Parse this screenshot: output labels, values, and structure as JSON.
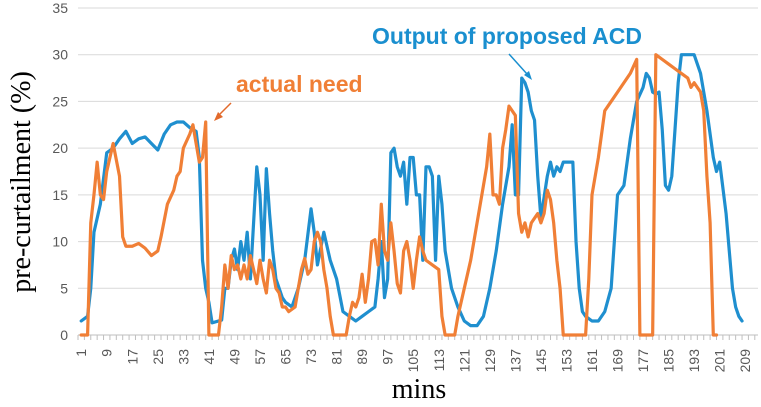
{
  "chart_data": {
    "type": "line",
    "title": "",
    "xlabel": "mins",
    "ylabel": "pre-curtailment (%)",
    "ylim": [
      0,
      35
    ],
    "yticks": [
      0,
      5,
      10,
      15,
      20,
      25,
      30,
      35
    ],
    "xlim": [
      0,
      213
    ],
    "xticks": [
      1,
      9,
      17,
      25,
      33,
      41,
      49,
      57,
      65,
      73,
      81,
      89,
      97,
      105,
      113,
      121,
      129,
      137,
      145,
      153,
      161,
      169,
      177,
      185,
      193,
      201,
      209
    ],
    "grid": true,
    "series": [
      {
        "name": "Output of proposed ACD",
        "color": "#1f8fcf",
        "points": [
          [
            1,
            1.5
          ],
          [
            3,
            2
          ],
          [
            4,
            5
          ],
          [
            5,
            11
          ],
          [
            7,
            14
          ],
          [
            9,
            19.5
          ],
          [
            11,
            20
          ],
          [
            13,
            21
          ],
          [
            15,
            21.8
          ],
          [
            17,
            20.5
          ],
          [
            19,
            21
          ],
          [
            21,
            21.2
          ],
          [
            23,
            20.5
          ],
          [
            25,
            19.8
          ],
          [
            27,
            21.5
          ],
          [
            29,
            22.5
          ],
          [
            31,
            22.8
          ],
          [
            33,
            22.8
          ],
          [
            35,
            22.2
          ],
          [
            37,
            21.8
          ],
          [
            38,
            19
          ],
          [
            39,
            8
          ],
          [
            40,
            5
          ],
          [
            41,
            3.5
          ],
          [
            42,
            1.3
          ],
          [
            45,
            1.6
          ],
          [
            46,
            5
          ],
          [
            47,
            5
          ],
          [
            48,
            8
          ],
          [
            49,
            9.2
          ],
          [
            50,
            7
          ],
          [
            51,
            10
          ],
          [
            52,
            8
          ],
          [
            53,
            11
          ],
          [
            54,
            6
          ],
          [
            55,
            12
          ],
          [
            56,
            18
          ],
          [
            57,
            15
          ],
          [
            58,
            8
          ],
          [
            59,
            17.8
          ],
          [
            60,
            13
          ],
          [
            61,
            9
          ],
          [
            62,
            6
          ],
          [
            63,
            5
          ],
          [
            64,
            4
          ],
          [
            65,
            3.5
          ],
          [
            67,
            3
          ],
          [
            69,
            5
          ],
          [
            71,
            8
          ],
          [
            73,
            13.5
          ],
          [
            74,
            11
          ],
          [
            75,
            7.5
          ],
          [
            77,
            11
          ],
          [
            79,
            8
          ],
          [
            81,
            6
          ],
          [
            83,
            2.5
          ],
          [
            85,
            2
          ],
          [
            87,
            1.5
          ],
          [
            89,
            2
          ],
          [
            91,
            2.5
          ],
          [
            93,
            3
          ],
          [
            94,
            6
          ],
          [
            95,
            10
          ],
          [
            96,
            4
          ],
          [
            97,
            6
          ],
          [
            98,
            19.5
          ],
          [
            99,
            20
          ],
          [
            100,
            18
          ],
          [
            101,
            17
          ],
          [
            102,
            18.5
          ],
          [
            103,
            14
          ],
          [
            104,
            19
          ],
          [
            105,
            19
          ],
          [
            106,
            15
          ],
          [
            107,
            15
          ],
          [
            108,
            8
          ],
          [
            109,
            18
          ],
          [
            110,
            18
          ],
          [
            111,
            17
          ],
          [
            112,
            8
          ],
          [
            113,
            17
          ],
          [
            114,
            14
          ],
          [
            115,
            9
          ],
          [
            117,
            5
          ],
          [
            119,
            3
          ],
          [
            121,
            1.5
          ],
          [
            123,
            1
          ],
          [
            125,
            1
          ],
          [
            127,
            2
          ],
          [
            129,
            5
          ],
          [
            131,
            9
          ],
          [
            133,
            14
          ],
          [
            135,
            18
          ],
          [
            136,
            22.5
          ],
          [
            137,
            15
          ],
          [
            138,
            15
          ],
          [
            139,
            27.5
          ],
          [
            140,
            27
          ],
          [
            141,
            26
          ],
          [
            142,
            24
          ],
          [
            143,
            23
          ],
          [
            144,
            17
          ],
          [
            145,
            12.5
          ],
          [
            147,
            17
          ],
          [
            148,
            18.5
          ],
          [
            149,
            17
          ],
          [
            150,
            18
          ],
          [
            151,
            17.5
          ],
          [
            152,
            18.5
          ],
          [
            155,
            18.5
          ],
          [
            156,
            10
          ],
          [
            157,
            5
          ],
          [
            158,
            2.5
          ],
          [
            159,
            2
          ],
          [
            161,
            1.5
          ],
          [
            163,
            1.5
          ],
          [
            165,
            2.5
          ],
          [
            167,
            5
          ],
          [
            168,
            10
          ],
          [
            169,
            15
          ],
          [
            171,
            16
          ],
          [
            173,
            21
          ],
          [
            175,
            25
          ],
          [
            177,
            26.5
          ],
          [
            178,
            28
          ],
          [
            179,
            27.5
          ],
          [
            180,
            26
          ],
          [
            181,
            25.8
          ],
          [
            182,
            26
          ],
          [
            183,
            22
          ],
          [
            184,
            16
          ],
          [
            185,
            15.5
          ],
          [
            186,
            17
          ],
          [
            187,
            22
          ],
          [
            188,
            27
          ],
          [
            189,
            30
          ],
          [
            191,
            30
          ],
          [
            193,
            30
          ],
          [
            195,
            28
          ],
          [
            197,
            24
          ],
          [
            199,
            19
          ],
          [
            200,
            17.5
          ],
          [
            201,
            18.5
          ],
          [
            203,
            13
          ],
          [
            205,
            5
          ],
          [
            206,
            3
          ],
          [
            207,
            2
          ],
          [
            208,
            1.5
          ]
        ]
      },
      {
        "name": "actual need",
        "color": "#f07f36",
        "points": [
          [
            1,
            0
          ],
          [
            3,
            0
          ],
          [
            4,
            12
          ],
          [
            5,
            15
          ],
          [
            6,
            18.5
          ],
          [
            7,
            15
          ],
          [
            8,
            14.5
          ],
          [
            9,
            17.5
          ],
          [
            11,
            20.5
          ],
          [
            13,
            17
          ],
          [
            14,
            10.5
          ],
          [
            15,
            9.5
          ],
          [
            17,
            9.5
          ],
          [
            19,
            9.8
          ],
          [
            21,
            9.3
          ],
          [
            23,
            8.5
          ],
          [
            25,
            9
          ],
          [
            26,
            10.5
          ],
          [
            28,
            14
          ],
          [
            30,
            15.5
          ],
          [
            31,
            17
          ],
          [
            32,
            17.5
          ],
          [
            33,
            20
          ],
          [
            35,
            21.5
          ],
          [
            36,
            22.5
          ],
          [
            37,
            20.5
          ],
          [
            38,
            18.5
          ],
          [
            39,
            19
          ],
          [
            40,
            22.8
          ],
          [
            41,
            0
          ],
          [
            44,
            0
          ],
          [
            45,
            3
          ],
          [
            46,
            7.5
          ],
          [
            47,
            5
          ],
          [
            48,
            8.5
          ],
          [
            49,
            7
          ],
          [
            50,
            7.5
          ],
          [
            51,
            6
          ],
          [
            52,
            7.5
          ],
          [
            53,
            6
          ],
          [
            54,
            8.5
          ],
          [
            55,
            7
          ],
          [
            56,
            5.5
          ],
          [
            57,
            8
          ],
          [
            58,
            6
          ],
          [
            59,
            4.5
          ],
          [
            60,
            8
          ],
          [
            61,
            7
          ],
          [
            62,
            5
          ],
          [
            63,
            4.5
          ],
          [
            64,
            3
          ],
          [
            65,
            3
          ],
          [
            66,
            2.5
          ],
          [
            68,
            3
          ],
          [
            69,
            5
          ],
          [
            70,
            7
          ],
          [
            71,
            8.2
          ],
          [
            72,
            6.5
          ],
          [
            73,
            7
          ],
          [
            74,
            10
          ],
          [
            75,
            11
          ],
          [
            76,
            10
          ],
          [
            77,
            7
          ],
          [
            78,
            5
          ],
          [
            79,
            2
          ],
          [
            80,
            0
          ],
          [
            82,
            0
          ],
          [
            84,
            0
          ],
          [
            85,
            2
          ],
          [
            86,
            3.5
          ],
          [
            87,
            3
          ],
          [
            88,
            4
          ],
          [
            89,
            6.5
          ],
          [
            90,
            3.5
          ],
          [
            91,
            6
          ],
          [
            92,
            10
          ],
          [
            93,
            10.2
          ],
          [
            94,
            7.5
          ],
          [
            95,
            14
          ],
          [
            96,
            9
          ],
          [
            97,
            8
          ],
          [
            98,
            12
          ],
          [
            99,
            9
          ],
          [
            100,
            5.5
          ],
          [
            101,
            4.5
          ],
          [
            102,
            9
          ],
          [
            103,
            10
          ],
          [
            104,
            8
          ],
          [
            105,
            5
          ],
          [
            106,
            8
          ],
          [
            107,
            10.5
          ],
          [
            108,
            9
          ],
          [
            109,
            8
          ],
          [
            111,
            7.5
          ],
          [
            113,
            7
          ],
          [
            114,
            2
          ],
          [
            115,
            0
          ],
          [
            118,
            0
          ],
          [
            119,
            2
          ],
          [
            121,
            5
          ],
          [
            123,
            8
          ],
          [
            125,
            12
          ],
          [
            127,
            16
          ],
          [
            128,
            18
          ],
          [
            129,
            21.5
          ],
          [
            130,
            15
          ],
          [
            131,
            15
          ],
          [
            132,
            14
          ],
          [
            133,
            20
          ],
          [
            134,
            22
          ],
          [
            135,
            24.5
          ],
          [
            136,
            24
          ],
          [
            137,
            23.5
          ],
          [
            138,
            13
          ],
          [
            139,
            11
          ],
          [
            140,
            12
          ],
          [
            141,
            10.5
          ],
          [
            142,
            12
          ],
          [
            143,
            12.5
          ],
          [
            144,
            13
          ],
          [
            145,
            12
          ],
          [
            146,
            13
          ],
          [
            147,
            15.5
          ],
          [
            148,
            14.5
          ],
          [
            149,
            12
          ],
          [
            150,
            8
          ],
          [
            151,
            5
          ],
          [
            152,
            0
          ],
          [
            155,
            0
          ],
          [
            157,
            0
          ],
          [
            159,
            0
          ],
          [
            160,
            6
          ],
          [
            161,
            15
          ],
          [
            163,
            19
          ],
          [
            165,
            24
          ],
          [
            167,
            25
          ],
          [
            169,
            26
          ],
          [
            171,
            27
          ],
          [
            173,
            28
          ],
          [
            175,
            29.5
          ],
          [
            176,
            0
          ],
          [
            178,
            0
          ],
          [
            180,
            0
          ],
          [
            181,
            30
          ],
          [
            183,
            29.5
          ],
          [
            185,
            29
          ],
          [
            187,
            28.5
          ],
          [
            189,
            28
          ],
          [
            191,
            27.5
          ],
          [
            192,
            26.5
          ],
          [
            193,
            27
          ],
          [
            195,
            26
          ],
          [
            196,
            24
          ],
          [
            197,
            17
          ],
          [
            198,
            12
          ],
          [
            199,
            0
          ],
          [
            200,
            0
          ]
        ]
      }
    ],
    "annotations": [
      {
        "text": "Output of proposed ACD",
        "color": "#1a8fcf",
        "points_to_series": "Output of proposed ACD"
      },
      {
        "text": "actual need",
        "color": "#f07f36",
        "points_to_series": "actual need"
      }
    ]
  }
}
